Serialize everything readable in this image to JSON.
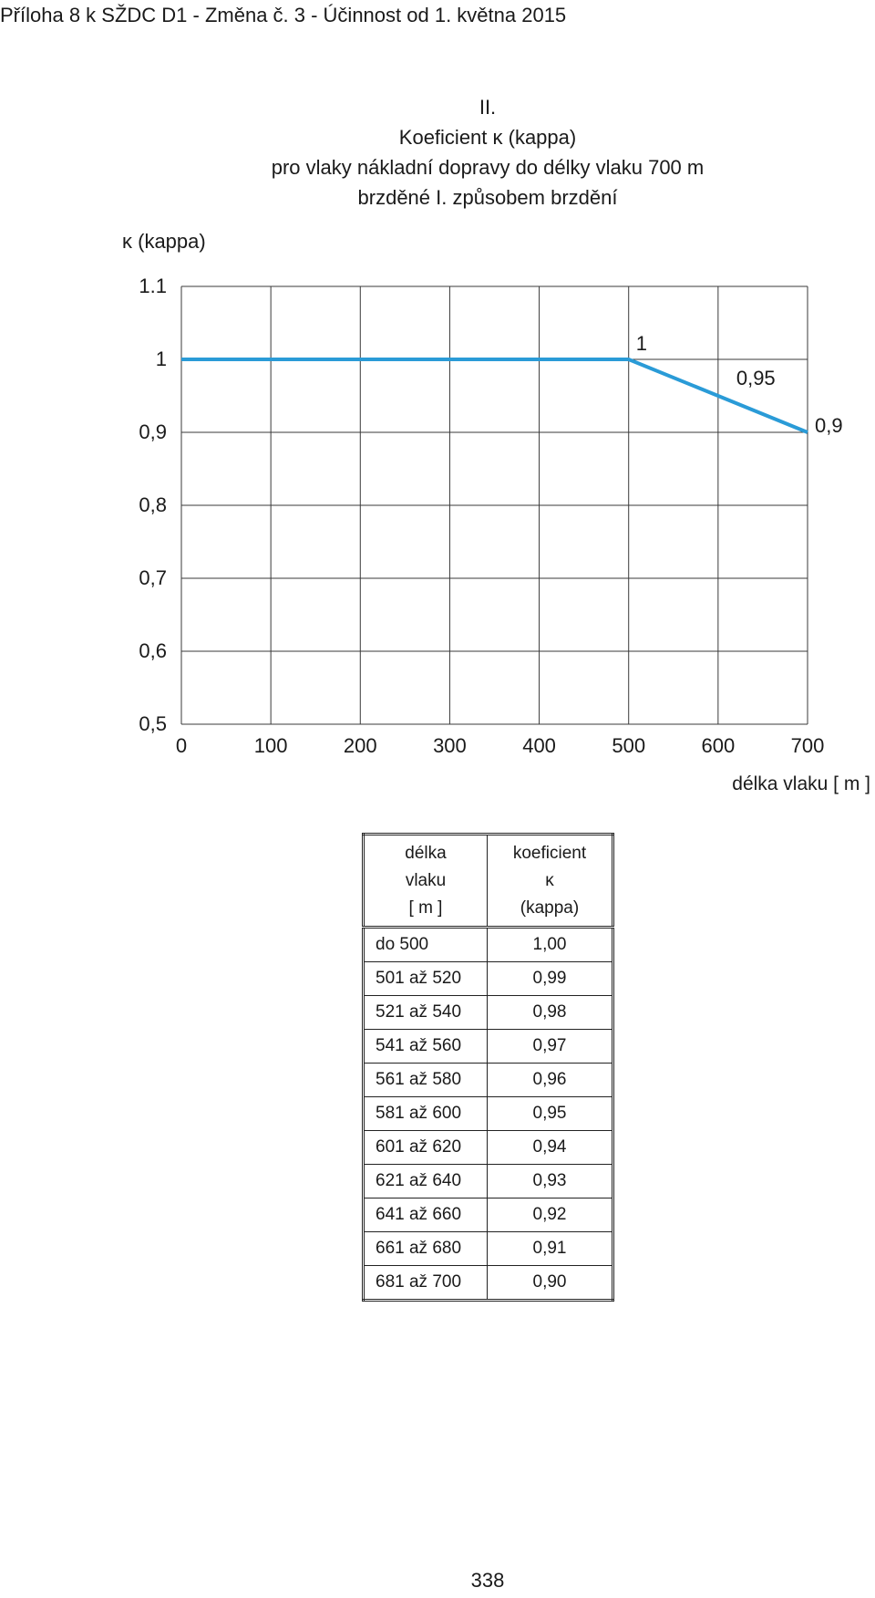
{
  "header": "Příloha 8 k SŽDC D1 - Změna č. 3 - Účinnost od 1. května 2015",
  "title_lines": [
    "II.",
    "Koeficient κ (kappa)",
    "pro vlaky nákladní dopravy do délky vlaku 700 m",
    "brzděné I. způsobem brzdění"
  ],
  "chart_data": {
    "type": "line",
    "ylabel": "κ (kappa)",
    "xlabel": "délka vlaku [ m ]",
    "x_ticks": [
      "0",
      "100",
      "200",
      "300",
      "400",
      "500",
      "600",
      "700"
    ],
    "y_ticks": [
      "0,5",
      "0,6",
      "0,7",
      "0,8",
      "0,9",
      "1",
      "1.1"
    ],
    "xlim": [
      0,
      700
    ],
    "ylim": [
      0.5,
      1.1
    ],
    "grid": true,
    "line_color": "#2a9bd7",
    "series": [
      {
        "x": [
          0,
          500,
          700
        ],
        "y": [
          1.0,
          1.0,
          0.9
        ]
      }
    ],
    "annotations": [
      {
        "text": "1",
        "x": 500,
        "y": 1.0
      },
      {
        "text": "0,95",
        "x": 600,
        "y": 0.95
      },
      {
        "text": "0,9",
        "x": 700,
        "y": 0.9
      }
    ]
  },
  "table": {
    "headers": [
      [
        "délka",
        "vlaku",
        "[ m ]"
      ],
      [
        "koeficient",
        "κ",
        "(kappa)"
      ]
    ],
    "rows": [
      [
        "do 500",
        "1,00"
      ],
      [
        "501 až 520",
        "0,99"
      ],
      [
        "521 až 540",
        "0,98"
      ],
      [
        "541 až 560",
        "0,97"
      ],
      [
        "561 až 580",
        "0,96"
      ],
      [
        "581 až 600",
        "0,95"
      ],
      [
        "601 až 620",
        "0,94"
      ],
      [
        "621 až 640",
        "0,93"
      ],
      [
        "641 až 660",
        "0,92"
      ],
      [
        "661 až 680",
        "0,91"
      ],
      [
        "681 až 700",
        "0,90"
      ]
    ]
  },
  "page_number": "338"
}
